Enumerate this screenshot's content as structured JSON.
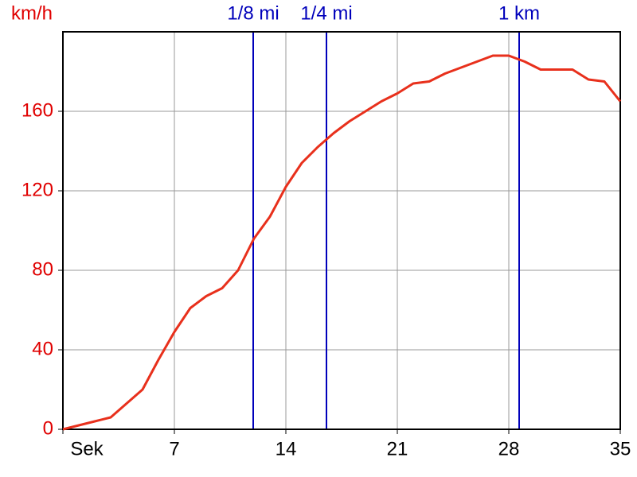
{
  "chart_data": {
    "type": "line",
    "y_label": "km/h",
    "x": [
      0,
      1,
      2,
      3,
      4,
      5,
      6,
      7,
      8,
      9,
      10,
      11,
      12,
      13,
      14,
      15,
      16,
      17,
      18,
      19,
      20,
      21,
      22,
      23,
      24,
      25,
      26,
      27,
      28,
      29,
      30,
      31,
      32,
      33,
      34,
      35
    ],
    "series": [
      {
        "color": "#e8301c",
        "values": [
          0,
          2,
          4,
          6,
          13,
          20,
          35,
          49,
          61,
          67,
          71,
          80,
          96,
          107,
          122,
          134,
          142,
          149,
          155,
          160,
          165,
          169,
          174,
          175,
          179,
          182,
          185,
          188,
          188,
          185,
          181,
          181,
          181,
          176,
          175,
          165
        ]
      }
    ],
    "xlim": [
      0,
      35
    ],
    "xticks": [
      {
        "value": 0,
        "label": "Sek"
      },
      7,
      14,
      21,
      28,
      35
    ],
    "ylim": [
      0,
      200
    ],
    "yticks": [
      0,
      40,
      80,
      120,
      160
    ],
    "grid": true,
    "markers": [
      {
        "label": "1/8 mi",
        "value": 11.95
      },
      {
        "label": "1/4 mi",
        "value": 16.55
      },
      {
        "label": "1 km",
        "value": 28.65
      }
    ],
    "marker_color": "#0000bb",
    "y_tick_color": "#e00000"
  }
}
